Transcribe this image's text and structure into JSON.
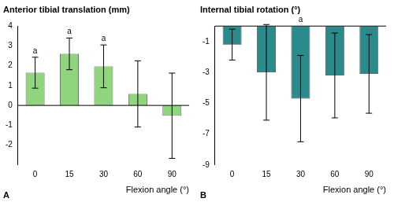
{
  "chart_data": [
    {
      "type": "bar",
      "panel": "A",
      "title": "Anterior tibial translation (mm)",
      "x_label": "Flexion angle (°)",
      "categories": [
        "0",
        "15",
        "30",
        "60",
        "90"
      ],
      "values": [
        1.65,
        2.6,
        1.97,
        0.58,
        -0.52
      ],
      "errors": [
        0.78,
        0.8,
        1.08,
        1.67,
        2.15
      ],
      "color": "#90d47e",
      "ylim": [
        -3,
        4
      ],
      "yticks": [
        -2,
        -1,
        0,
        1,
        2,
        3,
        4
      ],
      "grid": false,
      "annotations": [
        {
          "category": "0",
          "text": "a"
        },
        {
          "category": "15",
          "text": "a"
        },
        {
          "category": "30",
          "text": "a"
        }
      ]
    },
    {
      "type": "bar",
      "panel": "B",
      "title": "Internal tibial rotation (°)",
      "x_label": "Flexion angle (°)",
      "categories": [
        "0",
        "15",
        "30",
        "60",
        "90"
      ],
      "values": [
        -1.2,
        -3.0,
        -4.7,
        -3.2,
        -3.1
      ],
      "errors": [
        1.0,
        3.1,
        2.8,
        2.75,
        2.55
      ],
      "color": "#2b8a8c",
      "ylim": [
        -9,
        0
      ],
      "yticks": [
        -9,
        -7,
        -5,
        -3,
        -1
      ],
      "grid": false,
      "annotations": [
        {
          "category": "30",
          "text": "a"
        }
      ]
    }
  ]
}
